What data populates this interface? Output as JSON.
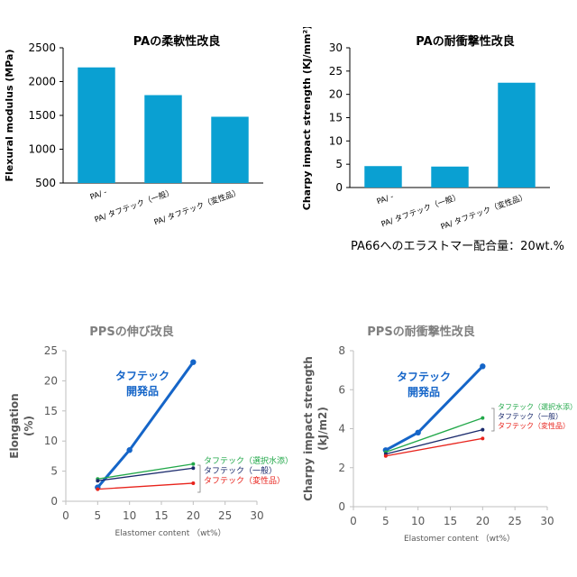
{
  "chart_data": [
    {
      "type": "bar",
      "title": "PAの柔軟性改良",
      "ylabel": "Flexural modulus (MPa)",
      "xlabel": "",
      "categories": [
        "PA/ -",
        "PA/ タフテック（一般）",
        "PA/ タフテック（変性品）"
      ],
      "values": [
        2210,
        1800,
        1480
      ],
      "ylim": [
        500,
        2500
      ],
      "yticks": [
        "500",
        "1000",
        "1500",
        "2000",
        "2500"
      ],
      "grid": false,
      "color": "#0aa0d2"
    },
    {
      "type": "bar",
      "title": "PAの耐衝撃性改良",
      "ylabel": "Charpy impact strength (KJ/mm²)",
      "xlabel": "",
      "categories": [
        "PA/ -",
        "PA/ タフテック（一般）",
        "PA/ タフテック（変性品）"
      ],
      "values": [
        4.6,
        4.5,
        22.5
      ],
      "ylim": [
        0,
        30
      ],
      "yticks": [
        "0",
        "5",
        "10",
        "15",
        "20",
        "25",
        "30"
      ],
      "grid": false,
      "color": "#0aa0d2",
      "note": "PA66へのエラストマー配合量：20wt.%"
    },
    {
      "type": "line",
      "title": "PPSの伸び改良",
      "ylabel": "Elongation (%)",
      "xlabel": "Elastomer content （wt%）",
      "xlim": [
        0,
        30
      ],
      "ylim": [
        0,
        25
      ],
      "xticks": [
        "0",
        "5",
        "10",
        "15",
        "20",
        "25",
        "30"
      ],
      "yticks": [
        "0",
        "5",
        "10",
        "15",
        "20",
        "25"
      ],
      "grid": false,
      "series": [
        {
          "name": "タフテック 開発品",
          "x": [
            5,
            10,
            20
          ],
          "y": [
            2.3,
            8.5,
            23.1
          ],
          "color": "#1565c8"
        },
        {
          "name": "タフテック（選択水添）",
          "x": [
            5,
            20
          ],
          "y": [
            3.7,
            6.2
          ],
          "color": "#22a84a"
        },
        {
          "name": "タフテック（一般）",
          "x": [
            5,
            20
          ],
          "y": [
            3.4,
            5.5
          ],
          "color": "#1a2a6c"
        },
        {
          "name": "タフテック（変性品）",
          "x": [
            5,
            20
          ],
          "y": [
            2.0,
            3.0
          ],
          "color": "#e8231c"
        }
      ]
    },
    {
      "type": "line",
      "title": "PPSの耐衝撃性改良",
      "ylabel": "Charpy impact strength (kJ/m2)",
      "xlabel": "Elastomer content （wt%）",
      "xlim": [
        0,
        30
      ],
      "ylim": [
        0,
        8
      ],
      "xticks": [
        "0",
        "5",
        "10",
        "15",
        "20",
        "25",
        "30"
      ],
      "yticks": [
        "0",
        "2",
        "4",
        "6",
        "8"
      ],
      "grid": false,
      "series": [
        {
          "name": "タフテック 開発品",
          "x": [
            5,
            10,
            20
          ],
          "y": [
            2.9,
            3.8,
            7.2
          ],
          "color": "#1565c8"
        },
        {
          "name": "タフテック（選択水添）",
          "x": [
            5,
            20
          ],
          "y": [
            2.8,
            4.55
          ],
          "color": "#22a84a"
        },
        {
          "name": "タフテック（一般）",
          "x": [
            5,
            20
          ],
          "y": [
            2.7,
            3.95
          ],
          "color": "#1a2a6c"
        },
        {
          "name": "タフテック（変性品）",
          "x": [
            5,
            20
          ],
          "y": [
            2.6,
            3.5
          ],
          "color": "#e8231c"
        }
      ]
    }
  ],
  "labels": {
    "dev_line1": "タフテック",
    "dev_line2": "開発品",
    "legend_selective": "タフテック（選択水添）",
    "legend_general": "タフテック（一般）",
    "legend_modified": "タフテック（変性品）"
  }
}
